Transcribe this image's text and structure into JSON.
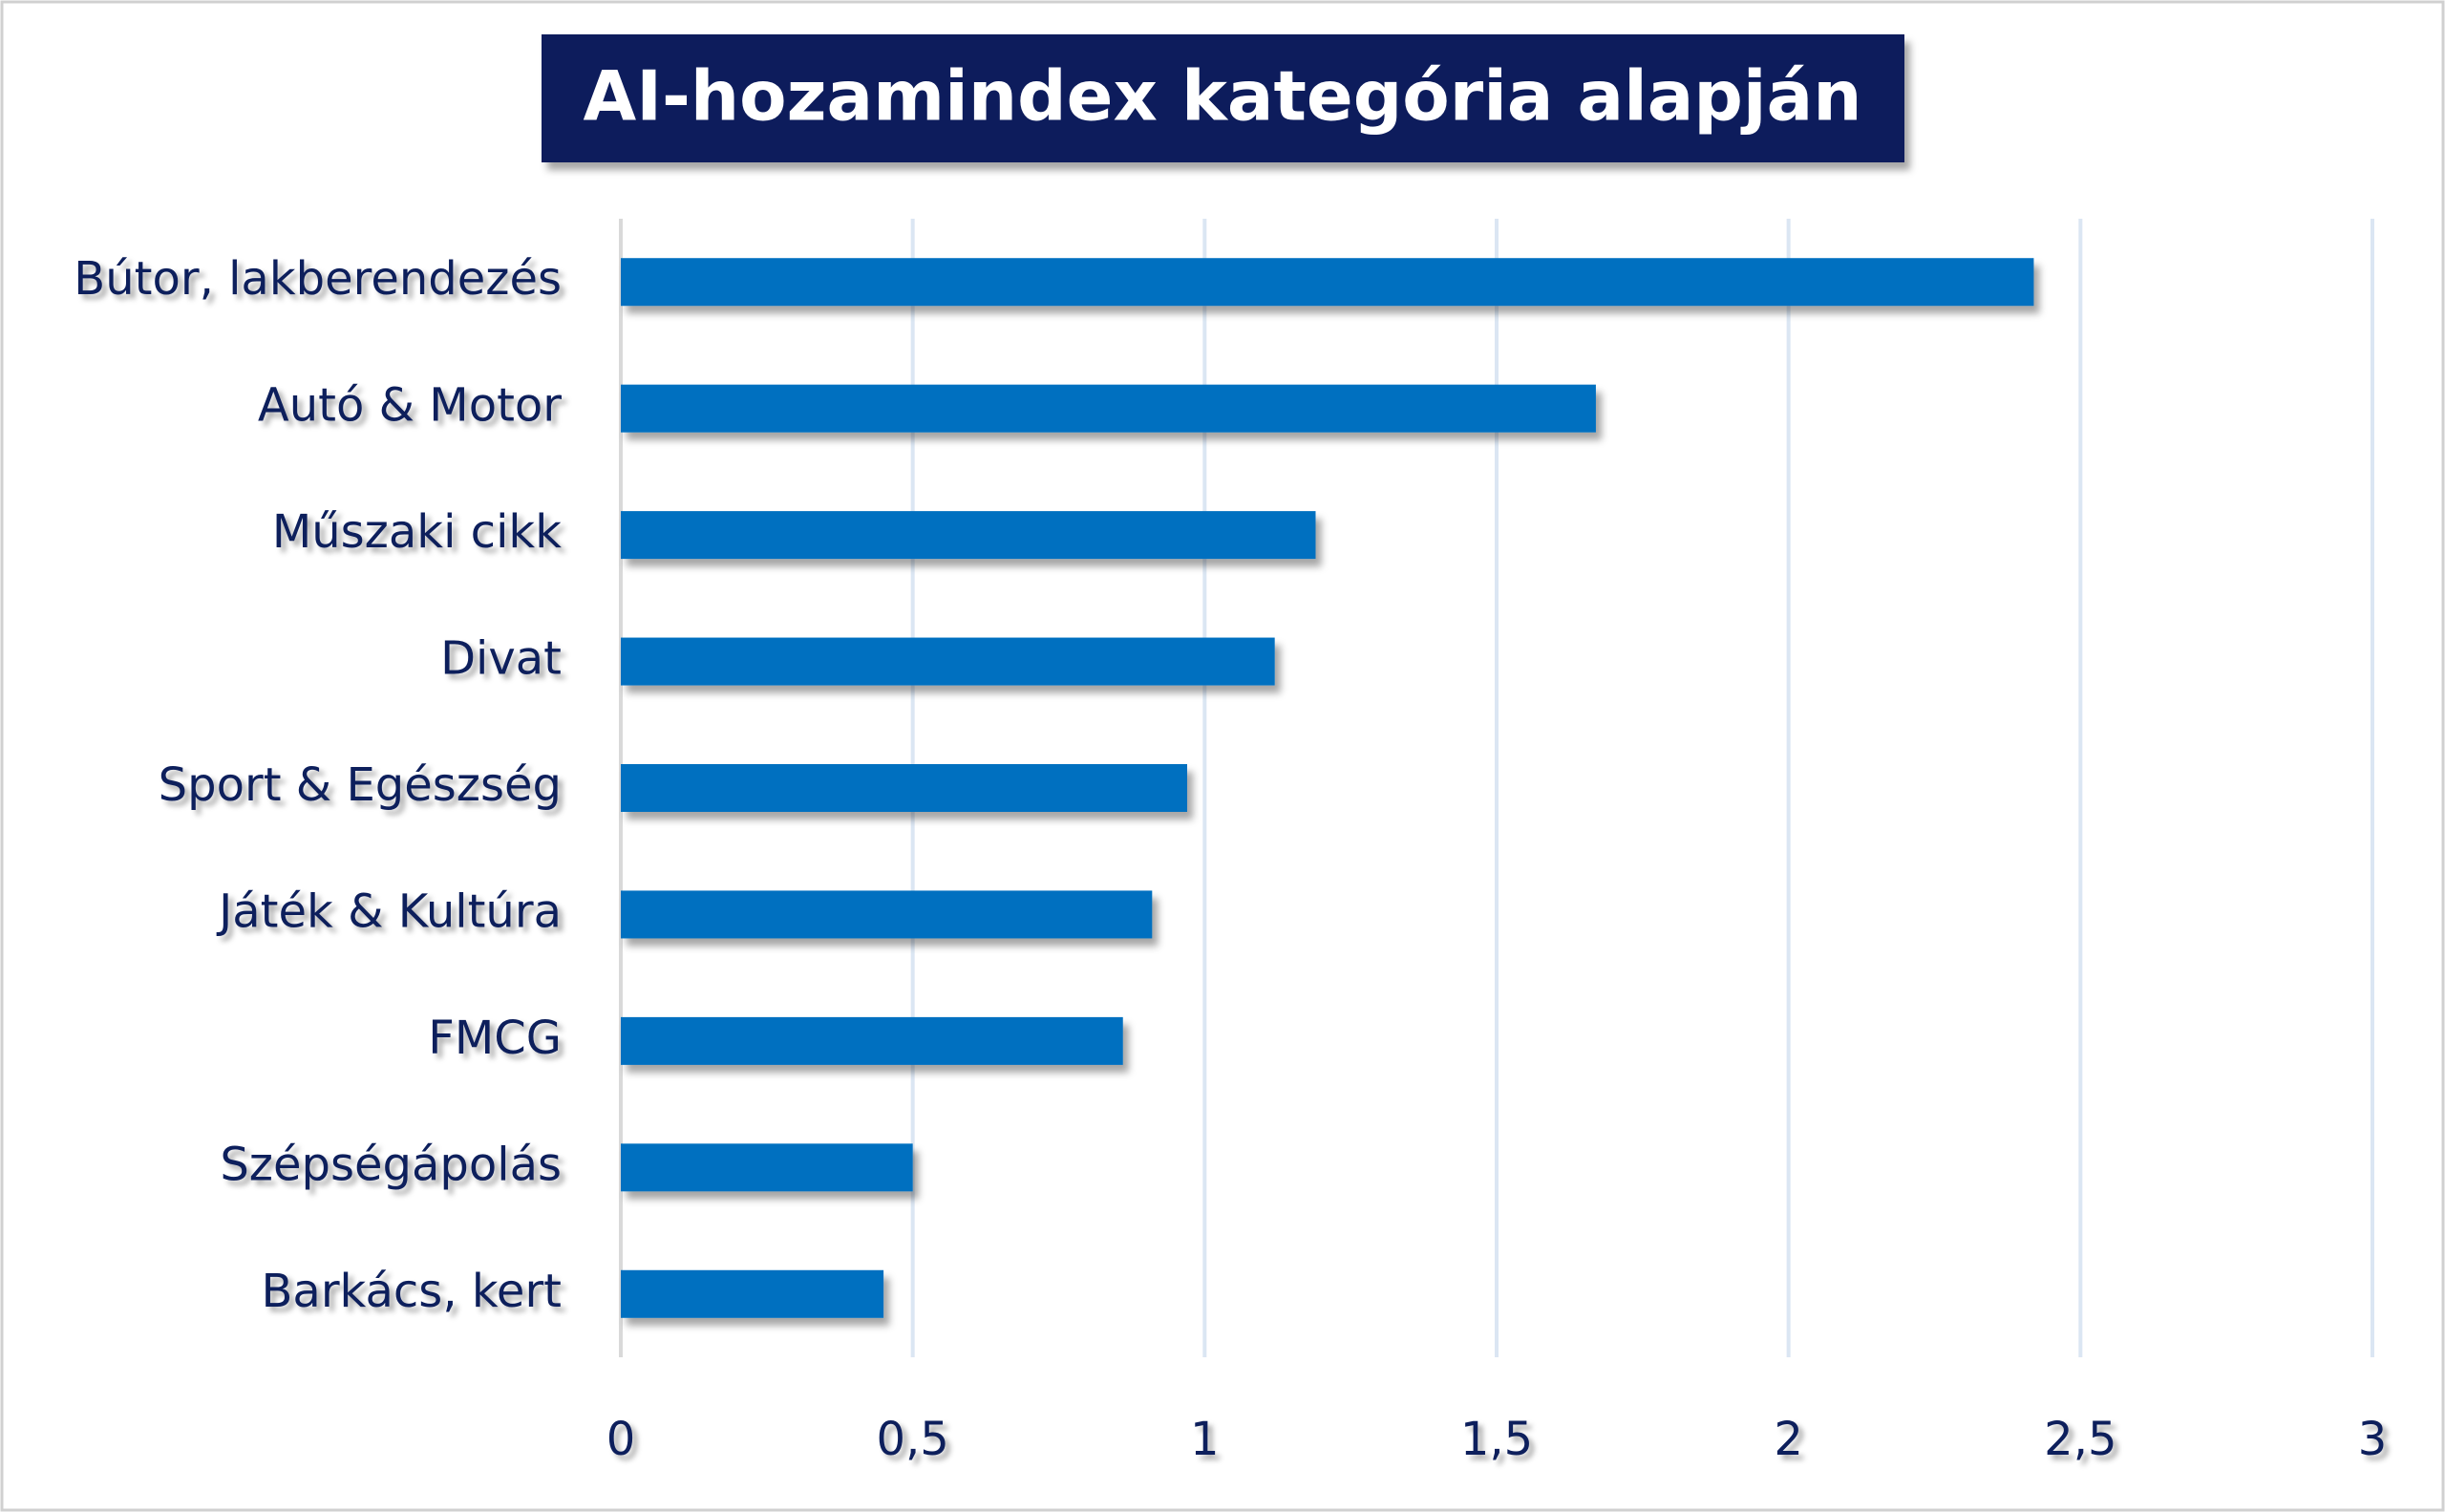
{
  "chart_data": {
    "type": "bar",
    "orientation": "horizontal",
    "title": "AI-hozamindex kategória alapján",
    "categories": [
      "Bútor, lakberendezés",
      "Autó & Motor",
      "Műszaki cikk",
      "Divat",
      "Sport & Egészség",
      "Játék & Kultúra",
      "FMCG",
      "Szépségápolás",
      "Barkács, kert"
    ],
    "values": [
      2.42,
      1.67,
      1.19,
      1.12,
      0.97,
      0.91,
      0.86,
      0.5,
      0.45
    ],
    "color": "#0070c0",
    "xlim": [
      0,
      3
    ],
    "xticks": [
      0,
      {
        "value": 0.5,
        "label": "0,5"
      },
      1,
      {
        "value": 1.5,
        "label": "1,5"
      },
      2,
      {
        "value": 2.5,
        "label": "2,5"
      },
      3
    ],
    "grid": true
  }
}
